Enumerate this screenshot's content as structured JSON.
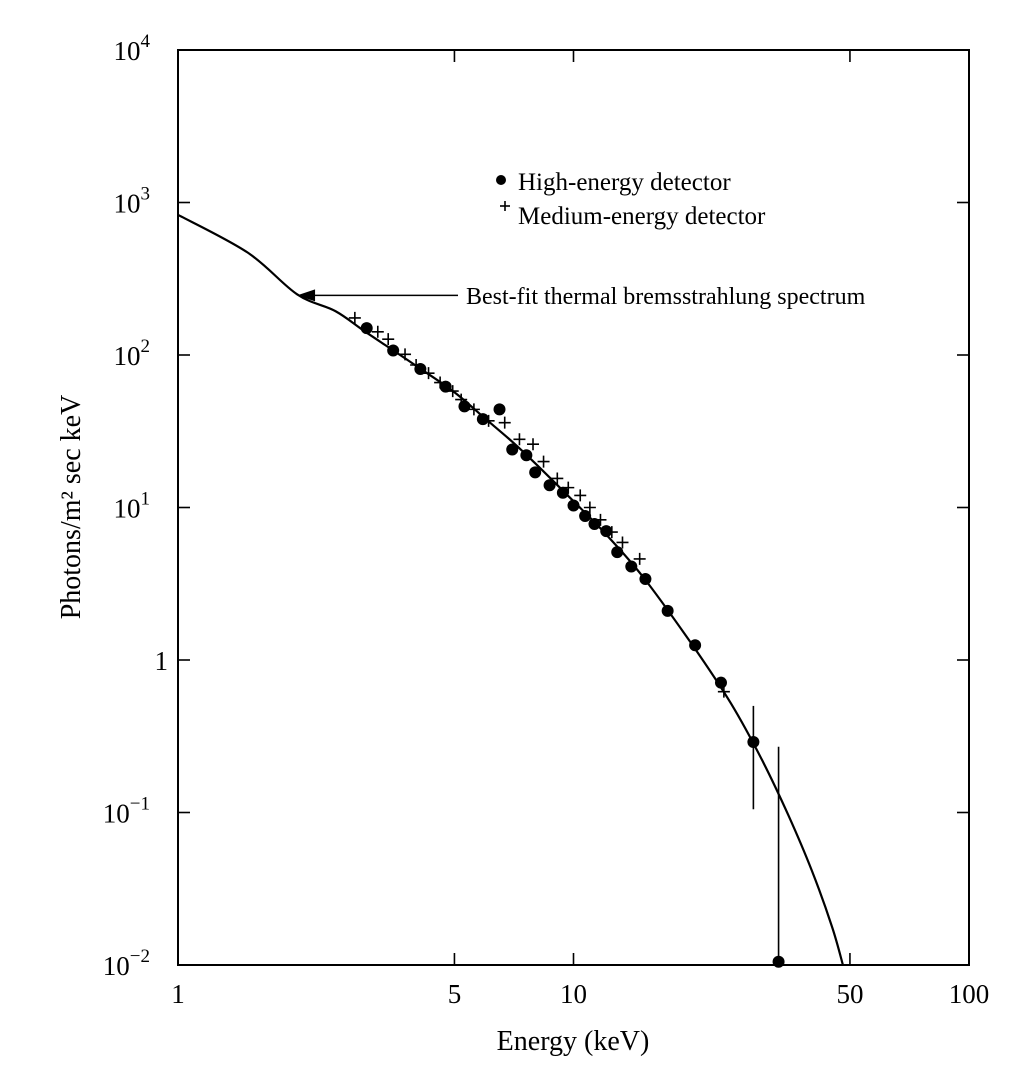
{
  "chart_data": {
    "type": "scatter",
    "title": "",
    "xlabel": "Energy (keV)",
    "ylabel": "Photons/m² sec keV",
    "xscale": "log",
    "yscale": "log",
    "xlim": [
      1,
      100
    ],
    "ylim": [
      0.01,
      10000
    ],
    "grid": false,
    "legend_position": "top-right",
    "x_ticks": [
      {
        "value": 1,
        "label": "1"
      },
      {
        "value": 5,
        "label": "5"
      },
      {
        "value": 10,
        "label": "10"
      },
      {
        "value": 50,
        "label": "50"
      },
      {
        "value": 100,
        "label": "100"
      }
    ],
    "y_ticks": [
      {
        "value": 10000,
        "label": "10",
        "exp": "4"
      },
      {
        "value": 1000,
        "label": "10",
        "exp": "3"
      },
      {
        "value": 100,
        "label": "10",
        "exp": "2"
      },
      {
        "value": 10,
        "label": "10",
        "exp": "1"
      },
      {
        "value": 1,
        "label": "1",
        "exp": ""
      },
      {
        "value": 0.1,
        "label": "10",
        "exp": "−1"
      },
      {
        "value": 0.01,
        "label": "10",
        "exp": "−2"
      }
    ],
    "legend": [
      {
        "marker": "dot",
        "label": "High-energy detector"
      },
      {
        "marker": "plus",
        "label": "Medium-energy detector"
      }
    ],
    "annotation": {
      "text": "Best-fit thermal bremsstrahlung spectrum",
      "target": {
        "x": 2.0,
        "y": 246
      }
    },
    "series": [
      {
        "name": "High-energy detector",
        "marker": "dot",
        "points": [
          {
            "x": 3.0,
            "y": 150
          },
          {
            "x": 3.5,
            "y": 107
          },
          {
            "x": 4.1,
            "y": 81
          },
          {
            "x": 4.75,
            "y": 62
          },
          {
            "x": 5.3,
            "y": 46
          },
          {
            "x": 5.9,
            "y": 38
          },
          {
            "x": 6.5,
            "y": 44
          },
          {
            "x": 7.0,
            "y": 24
          },
          {
            "x": 7.6,
            "y": 22
          },
          {
            "x": 8.0,
            "y": 17
          },
          {
            "x": 8.7,
            "y": 14
          },
          {
            "x": 9.4,
            "y": 12.5
          },
          {
            "x": 10.0,
            "y": 10.3
          },
          {
            "x": 10.7,
            "y": 8.8
          },
          {
            "x": 11.3,
            "y": 7.8
          },
          {
            "x": 12.1,
            "y": 7.0
          },
          {
            "x": 12.9,
            "y": 5.1
          },
          {
            "x": 14.0,
            "y": 4.1
          },
          {
            "x": 15.2,
            "y": 3.4
          },
          {
            "x": 17.3,
            "y": 2.1
          },
          {
            "x": 20.3,
            "y": 1.25
          },
          {
            "x": 23.6,
            "y": 0.71
          },
          {
            "x": 28.5,
            "y": 0.29,
            "yerr": [
              0.105,
              0.5
            ]
          },
          {
            "x": 33.0,
            "y": 0.0105,
            "yerr": [
              0.0105,
              0.27
            ]
          }
        ]
      },
      {
        "name": "Medium-energy detector",
        "marker": "plus",
        "points": [
          {
            "x": 2.8,
            "y": 175
          },
          {
            "x": 3.2,
            "y": 142
          },
          {
            "x": 3.4,
            "y": 127
          },
          {
            "x": 3.75,
            "y": 101
          },
          {
            "x": 4.0,
            "y": 86
          },
          {
            "x": 4.3,
            "y": 76
          },
          {
            "x": 4.6,
            "y": 66
          },
          {
            "x": 4.95,
            "y": 58
          },
          {
            "x": 5.2,
            "y": 51
          },
          {
            "x": 5.6,
            "y": 44
          },
          {
            "x": 6.1,
            "y": 37
          },
          {
            "x": 6.7,
            "y": 36
          },
          {
            "x": 7.3,
            "y": 28
          },
          {
            "x": 7.9,
            "y": 26
          },
          {
            "x": 8.4,
            "y": 20
          },
          {
            "x": 9.1,
            "y": 15.5
          },
          {
            "x": 9.7,
            "y": 13.5
          },
          {
            "x": 10.4,
            "y": 12.0
          },
          {
            "x": 11.0,
            "y": 10.0
          },
          {
            "x": 11.7,
            "y": 8.3
          },
          {
            "x": 12.5,
            "y": 6.9
          },
          {
            "x": 13.3,
            "y": 5.9
          },
          {
            "x": 14.7,
            "y": 4.6
          },
          {
            "x": 24.0,
            "y": 0.62
          }
        ]
      },
      {
        "name": "Best-fit thermal bremsstrahlung spectrum",
        "marker": "line",
        "points": [
          {
            "x": 1.0,
            "y": 830
          },
          {
            "x": 1.5,
            "y": 470
          },
          {
            "x": 2.0,
            "y": 250
          },
          {
            "x": 2.5,
            "y": 194
          },
          {
            "x": 3.0,
            "y": 140
          },
          {
            "x": 4.0,
            "y": 85
          },
          {
            "x": 5.0,
            "y": 57
          },
          {
            "x": 6.0,
            "y": 38
          },
          {
            "x": 7.0,
            "y": 27
          },
          {
            "x": 8.0,
            "y": 19.5
          },
          {
            "x": 10.0,
            "y": 11
          },
          {
            "x": 12.0,
            "y": 6.8
          },
          {
            "x": 15.0,
            "y": 3.5
          },
          {
            "x": 20.0,
            "y": 1.25
          },
          {
            "x": 25.0,
            "y": 0.52
          },
          {
            "x": 30.0,
            "y": 0.22
          },
          {
            "x": 35.0,
            "y": 0.095
          },
          {
            "x": 40.0,
            "y": 0.042
          },
          {
            "x": 45.0,
            "y": 0.018
          },
          {
            "x": 48.0,
            "y": 0.01
          }
        ]
      }
    ]
  }
}
